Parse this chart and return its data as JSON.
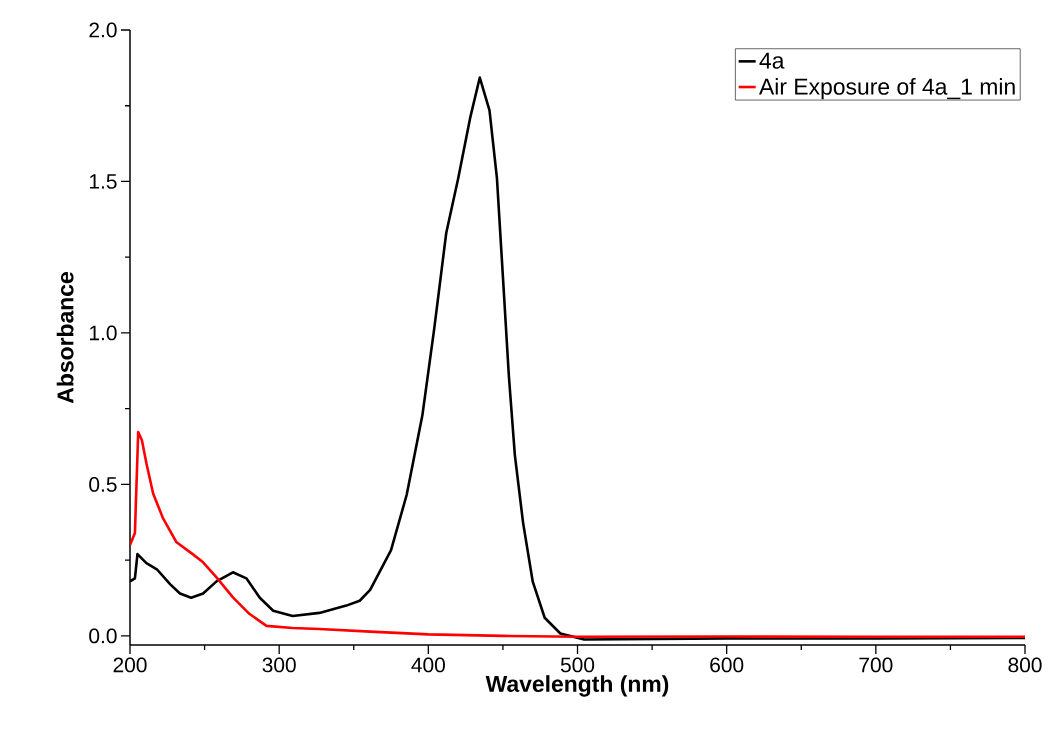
{
  "chart_data": {
    "type": "line",
    "xlabel": "Wavelength (nm)",
    "ylabel": "Absorbance",
    "xlim": [
      200,
      800
    ],
    "ylim": [
      -0.03,
      2.0
    ],
    "xticks": [
      200,
      300,
      400,
      500,
      600,
      700,
      800
    ],
    "yticks": [
      {
        "value": 0,
        "label": "0.0"
      },
      {
        "value": 0.5,
        "label": "0.5"
      },
      {
        "value": 1.0,
        "label": "1.0"
      },
      {
        "value": 1.5,
        "label": "1.5"
      },
      {
        "value": 2.0,
        "label": "2.0"
      }
    ],
    "grid": false,
    "legend": "top right",
    "marker": "none",
    "line_style": "solid",
    "series": [
      {
        "name": "4a",
        "color": "#000000",
        "x": [
          200,
          203.3,
          205,
          211,
          218,
          227,
          233.5,
          241,
          249,
          258,
          269,
          278,
          287,
          296,
          309,
          327,
          345,
          354,
          361,
          375,
          385.5,
          396,
          404,
          412,
          420,
          428,
          434.5,
          441,
          446,
          450,
          454,
          458,
          463.5,
          470,
          478,
          488.5,
          504.5,
          600,
          700,
          800
        ],
        "values": [
          0.18,
          0.19,
          0.27,
          0.24,
          0.22,
          0.17,
          0.14,
          0.126,
          0.14,
          0.18,
          0.21,
          0.19,
          0.126,
          0.083,
          0.066,
          0.076,
          0.1,
          0.116,
          0.152,
          0.283,
          0.466,
          0.728,
          1.016,
          1.33,
          1.51,
          1.709,
          1.843,
          1.735,
          1.51,
          1.185,
          0.857,
          0.597,
          0.374,
          0.179,
          0.06,
          0.008,
          -0.012,
          -0.008,
          -0.008,
          -0.007
        ]
      },
      {
        "name": "Air Exposure of 4a_1 min",
        "color": "#ff0000",
        "x": [
          200,
          203.3,
          205.5,
          208,
          211,
          215.5,
          222,
          231,
          242,
          249,
          258,
          269,
          280,
          291.5,
          309,
          327,
          361,
          400,
          450,
          500,
          600,
          700,
          800
        ],
        "values": [
          0.3,
          0.34,
          0.673,
          0.646,
          0.57,
          0.47,
          0.39,
          0.31,
          0.27,
          0.243,
          0.193,
          0.127,
          0.073,
          0.033,
          0.026,
          0.023,
          0.014,
          0.005,
          0.0,
          -0.003,
          -0.002,
          -0.003,
          -0.003
        ]
      }
    ]
  }
}
